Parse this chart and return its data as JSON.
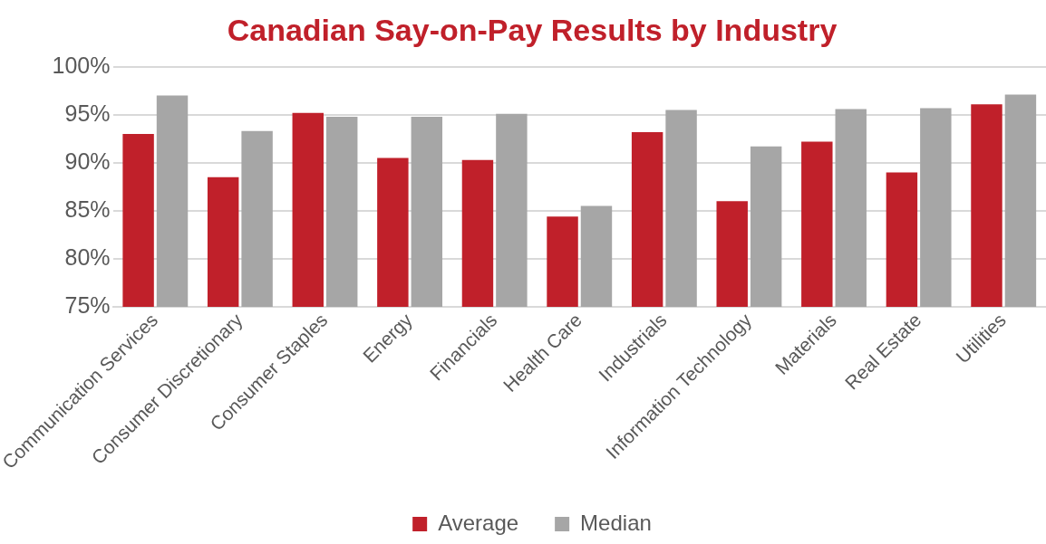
{
  "chart_data": {
    "type": "bar",
    "title": "Canadian Say-on-Pay Results by Industry",
    "categories": [
      "Communication Services",
      "Consumer Discretionary",
      "Consumer Staples",
      "Energy",
      "Financials",
      "Health Care",
      "Industrials",
      "Information Technology",
      "Materials",
      "Real Estate",
      "Utilities"
    ],
    "series": [
      {
        "name": "Average",
        "color": "#c0202a",
        "values": [
          93.0,
          88.5,
          95.2,
          90.5,
          90.3,
          84.4,
          93.2,
          86.0,
          92.2,
          89.0,
          96.1
        ]
      },
      {
        "name": "Median",
        "color": "#a6a6a6",
        "values": [
          97.0,
          93.3,
          94.8,
          94.8,
          95.1,
          85.5,
          95.5,
          91.7,
          95.6,
          95.7,
          97.1
        ]
      }
    ],
    "ylim": [
      75,
      100
    ],
    "yticks": [
      {
        "value": 75,
        "label": "75%"
      },
      {
        "value": 80,
        "label": "80%"
      },
      {
        "value": 85,
        "label": "85%"
      },
      {
        "value": 90,
        "label": "90%"
      },
      {
        "value": 95,
        "label": "95%"
      },
      {
        "value": 100,
        "label": "100%"
      }
    ],
    "grid": "y",
    "legend": "bottom"
  }
}
